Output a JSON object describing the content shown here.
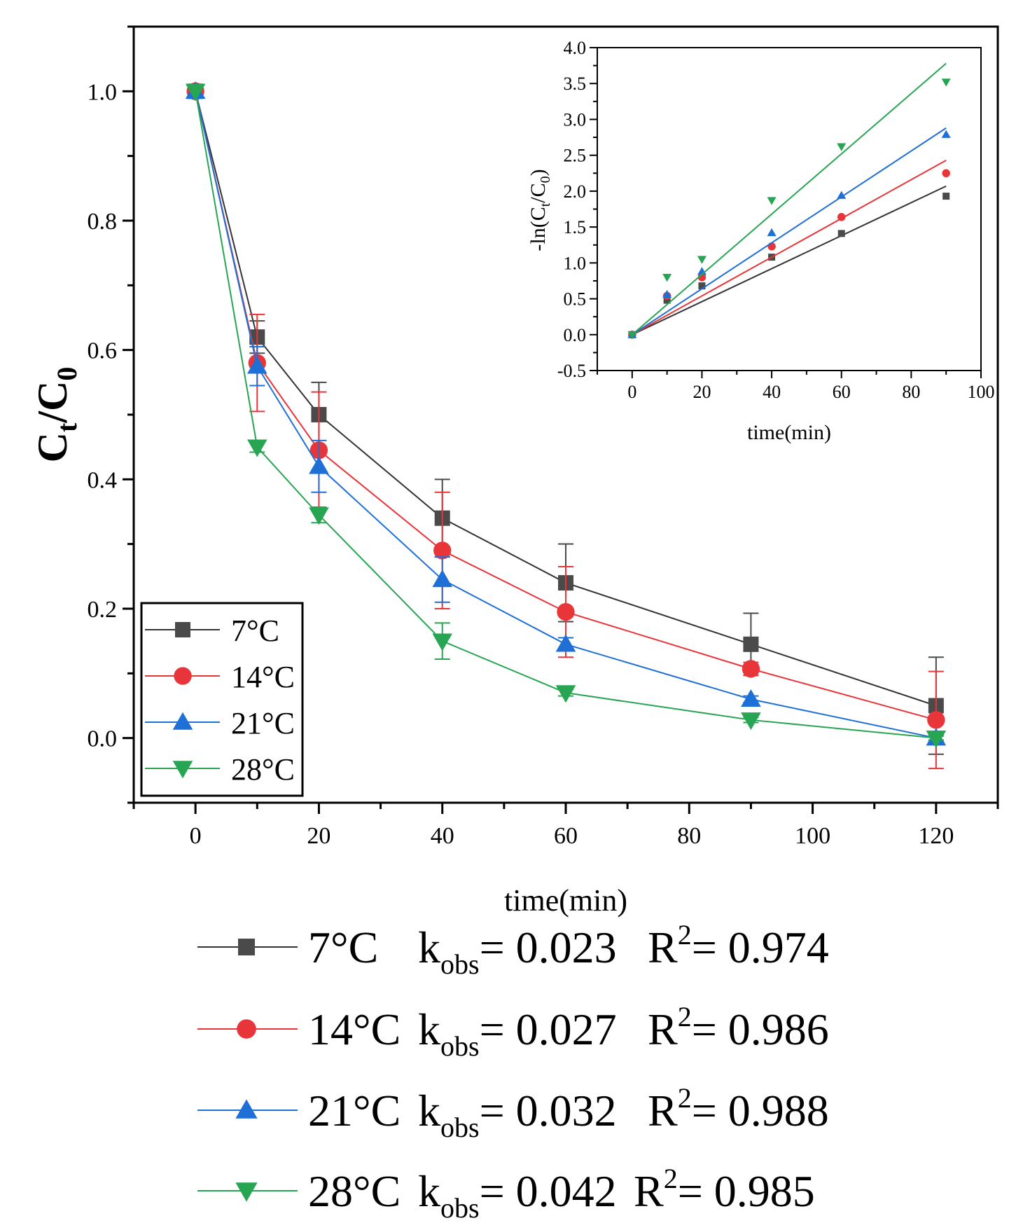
{
  "chart_data": [
    {
      "type": "line",
      "title": "",
      "xlabel": "time(min)",
      "ylabel_main": "C",
      "ylabel_sub1": "t",
      "ylabel_mid": "/C",
      "ylabel_sub2": "0",
      "xlim": [
        -10,
        130
      ],
      "ylim": [
        -0.1,
        1.1
      ],
      "xticks": [
        0,
        20,
        40,
        60,
        80,
        100,
        120
      ],
      "xtick_labels": [
        "0",
        "20",
        "40",
        "60",
        "80",
        "100",
        "120"
      ],
      "yticks": [
        0.0,
        0.2,
        0.4,
        0.6,
        0.8,
        1.0
      ],
      "ytick_labels": [
        "0.0",
        "0.2",
        "0.4",
        "0.6",
        "0.8",
        "1.0"
      ],
      "grid": false,
      "legend_position": "bottom-left",
      "x": [
        0,
        10,
        20,
        40,
        60,
        90,
        120
      ],
      "series": [
        {
          "name": "7°C",
          "color": "#4a4a4a",
          "line_color": "#333333",
          "marker": "square",
          "values": [
            1.0,
            0.62,
            0.5,
            0.34,
            0.24,
            0.145,
            0.05
          ],
          "errors": [
            0,
            0.025,
            0.05,
            0.06,
            0.06,
            0.048,
            0.075
          ]
        },
        {
          "name": "14°C",
          "color": "#e8353a",
          "line_color": "#e8353a",
          "marker": "circle",
          "values": [
            1.0,
            0.58,
            0.445,
            0.29,
            0.195,
            0.107,
            0.028
          ],
          "errors": [
            0,
            0.075,
            0.09,
            0.09,
            0.07,
            0.01,
            0.075
          ]
        },
        {
          "name": "21°C",
          "color": "#1e6fd6",
          "line_color": "#1e6fd6",
          "marker": "triangle-up",
          "values": [
            1.0,
            0.575,
            0.42,
            0.245,
            0.145,
            0.06,
            0.0
          ],
          "errors": [
            0,
            0.03,
            0.04,
            0.035,
            0.01,
            0.005,
            0.005
          ]
        },
        {
          "name": "28°C",
          "color": "#27a552",
          "line_color": "#27a552",
          "marker": "triangle-down",
          "values": [
            1.0,
            0.45,
            0.345,
            0.15,
            0.07,
            0.028,
            0.0
          ],
          "errors": [
            0,
            0.008,
            0.012,
            0.028,
            0.005,
            0.004,
            0.003
          ]
        }
      ]
    },
    {
      "type": "scatter",
      "title": "",
      "xlabel": "time(min)",
      "ylabel": "-ln(C",
      "ylabel_sub1": "t",
      "ylabel_mid": "/C",
      "ylabel_sub2": "0",
      "ylabel_end": ")",
      "xlim": [
        -10,
        100
      ],
      "ylim": [
        -0.5,
        4.0
      ],
      "xticks": [
        0,
        20,
        40,
        60,
        80,
        100
      ],
      "xtick_labels": [
        "0",
        "20",
        "40",
        "60",
        "80",
        "100"
      ],
      "yticks": [
        -0.5,
        0.0,
        0.5,
        1.0,
        1.5,
        2.0,
        2.5,
        3.0,
        3.5,
        4.0
      ],
      "ytick_labels": [
        "-0.5",
        "0.0",
        "0.5",
        "1.0",
        "1.5",
        "2.0",
        "2.5",
        "3.0",
        "3.5",
        "4.0"
      ],
      "x": [
        0,
        10,
        20,
        40,
        60,
        90
      ],
      "series": [
        {
          "name": "7°C",
          "color": "#4a4a4a",
          "line_color": "#333333",
          "marker": "square",
          "values": [
            0.0,
            0.48,
            0.68,
            1.08,
            1.41,
            1.93
          ],
          "fit_slope": 0.023
        },
        {
          "name": "14°C",
          "color": "#e8353a",
          "line_color": "#e8353a",
          "marker": "circle",
          "values": [
            0.0,
            0.54,
            0.8,
            1.23,
            1.64,
            2.25
          ],
          "fit_slope": 0.027
        },
        {
          "name": "21°C",
          "color": "#1e6fd6",
          "line_color": "#1e6fd6",
          "marker": "triangle-up",
          "values": [
            0.0,
            0.56,
            0.88,
            1.42,
            1.94,
            2.79
          ],
          "fit_slope": 0.032
        },
        {
          "name": "28°C",
          "color": "#27a552",
          "line_color": "#27a552",
          "marker": "triangle-down",
          "values": [
            0.0,
            0.8,
            1.05,
            1.87,
            2.62,
            3.52
          ],
          "fit_slope": 0.042
        }
      ]
    }
  ],
  "legend": [
    {
      "label": "7°C",
      "color": "#4a4a4a",
      "marker": "square"
    },
    {
      "label": "14°C",
      "color": "#e8353a",
      "marker": "circle"
    },
    {
      "label": "21°C",
      "color": "#1e6fd6",
      "marker": "triangle-up"
    },
    {
      "label": "28°C",
      "color": "#27a552",
      "marker": "triangle-down"
    }
  ],
  "kinetics_legend": [
    {
      "temp": "7°C",
      "k_label": "k",
      "k_sub": "obs",
      "k_value": "= 0.023",
      "r_label": "R",
      "r_sup": "2",
      "r_value": "= 0.974",
      "color": "#4a4a4a",
      "line_color": "#333333",
      "marker": "square"
    },
    {
      "temp": "14°C",
      "k_label": "k",
      "k_sub": "obs",
      "k_value": "= 0.027",
      "r_label": "R",
      "r_sup": "2",
      "r_value": "= 0.986",
      "color": "#e8353a",
      "line_color": "#e8353a",
      "marker": "circle"
    },
    {
      "temp": "21°C",
      "k_label": "k",
      "k_sub": "obs",
      "k_value": "= 0.032",
      "r_label": "R",
      "r_sup": "2",
      "r_value": "= 0.988",
      "color": "#1e6fd6",
      "line_color": "#1e6fd6",
      "marker": "triangle-up"
    },
    {
      "temp": "28°C",
      "k_label": "k",
      "k_sub": "obs",
      "k_value": "= 0.042",
      "r_label": "R",
      "r_sup": "2",
      "r_value": "= 0.985",
      "color": "#27a552",
      "line_color": "#27a552",
      "marker": "triangle-down"
    }
  ]
}
